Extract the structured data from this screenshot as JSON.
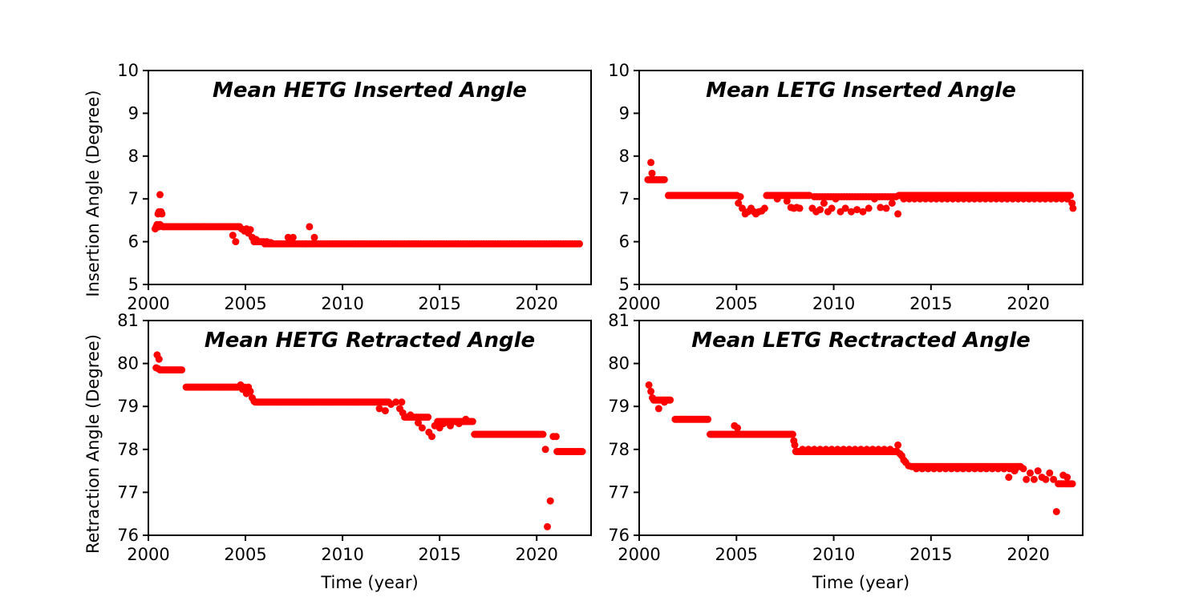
{
  "figure": {
    "background": "#ffffff",
    "marker_color": "#ff0000",
    "axis_color": "#000000"
  },
  "chart_data": [
    {
      "id": "hetg-inserted",
      "type": "scatter",
      "title": "Mean HETG Inserted Angle",
      "xlabel": "",
      "ylabel": "Insertion Angle (Degree)",
      "xlim": [
        2000,
        2022.8
      ],
      "ylim": [
        5,
        10
      ],
      "xticks": [
        2000,
        2005,
        2010,
        2015,
        2020
      ],
      "yticks": [
        5,
        6,
        7,
        8,
        9,
        10
      ],
      "grid": false,
      "runs": [
        [
          2000.8,
          2004.7,
          0.1,
          6.35
        ],
        [
          2005.45,
          2005.95,
          0.1,
          6.0
        ],
        [
          2006.0,
          2022.3,
          0.12,
          5.95
        ]
      ],
      "points": [
        [
          2000.35,
          6.3
        ],
        [
          2000.4,
          6.35
        ],
        [
          2000.45,
          6.4
        ],
        [
          2000.5,
          6.65
        ],
        [
          2000.55,
          6.7
        ],
        [
          2000.6,
          7.1
        ],
        [
          2000.65,
          6.7
        ],
        [
          2000.7,
          6.65
        ],
        [
          2000.55,
          6.35
        ],
        [
          2000.6,
          6.4
        ],
        [
          2000.75,
          6.35
        ],
        [
          2004.35,
          6.15
        ],
        [
          2004.5,
          6.0
        ],
        [
          2004.8,
          6.3
        ],
        [
          2004.95,
          6.25
        ],
        [
          2005.05,
          6.3
        ],
        [
          2005.15,
          6.2
        ],
        [
          2005.25,
          6.28
        ],
        [
          2005.35,
          6.1
        ],
        [
          2005.55,
          6.05
        ],
        [
          2006.1,
          6.0
        ],
        [
          2006.3,
          5.98
        ],
        [
          2007.2,
          6.1
        ],
        [
          2007.45,
          6.1
        ],
        [
          2008.3,
          6.35
        ],
        [
          2008.55,
          6.1
        ]
      ]
    },
    {
      "id": "letg-inserted",
      "type": "scatter",
      "title": "Mean LETG Inserted Angle",
      "xlabel": "",
      "ylabel": "",
      "xlim": [
        2000,
        2022.8
      ],
      "ylim": [
        5,
        10
      ],
      "xticks": [
        2000,
        2005,
        2010,
        2015,
        2020
      ],
      "yticks": [
        5,
        6,
        7,
        8,
        9,
        10
      ],
      "grid": false,
      "runs": [
        [
          2000.45,
          2001.35,
          0.07,
          7.45
        ],
        [
          2001.5,
          2005.05,
          0.08,
          7.08
        ],
        [
          2006.55,
          2008.75,
          0.1,
          7.08
        ],
        [
          2009.0,
          2013.2,
          0.14,
          7.05
        ],
        [
          2013.35,
          2022.2,
          0.07,
          7.08
        ],
        [
          2013.6,
          2022.0,
          0.28,
          7.0
        ]
      ],
      "points": [
        [
          2000.6,
          7.85
        ],
        [
          2000.66,
          7.6
        ],
        [
          2005.1,
          6.9
        ],
        [
          2005.2,
          7.05
        ],
        [
          2005.3,
          6.78
        ],
        [
          2005.45,
          6.65
        ],
        [
          2005.6,
          6.7
        ],
        [
          2005.75,
          6.78
        ],
        [
          2005.9,
          6.7
        ],
        [
          2006.0,
          6.65
        ],
        [
          2006.15,
          6.7
        ],
        [
          2006.3,
          6.72
        ],
        [
          2006.45,
          6.78
        ],
        [
          2007.1,
          7.0
        ],
        [
          2007.6,
          6.95
        ],
        [
          2007.8,
          6.8
        ],
        [
          2007.95,
          6.78
        ],
        [
          2008.1,
          6.8
        ],
        [
          2008.25,
          6.78
        ],
        [
          2008.9,
          6.78
        ],
        [
          2009.1,
          6.7
        ],
        [
          2009.3,
          6.75
        ],
        [
          2009.5,
          6.9
        ],
        [
          2009.7,
          6.7
        ],
        [
          2009.9,
          6.78
        ],
        [
          2010.1,
          7.0
        ],
        [
          2010.35,
          6.7
        ],
        [
          2010.6,
          6.78
        ],
        [
          2010.9,
          6.7
        ],
        [
          2011.2,
          6.75
        ],
        [
          2011.5,
          6.7
        ],
        [
          2011.8,
          6.78
        ],
        [
          2012.1,
          7.0
        ],
        [
          2012.4,
          6.8
        ],
        [
          2012.7,
          6.78
        ],
        [
          2013.0,
          6.9
        ],
        [
          2013.3,
          6.65
        ],
        [
          2022.25,
          6.9
        ],
        [
          2022.3,
          6.78
        ]
      ]
    },
    {
      "id": "hetg-retracted",
      "type": "scatter",
      "title": "Mean HETG Retracted Angle",
      "xlabel": "Time (year)",
      "ylabel": "Retraction Angle (Degree)",
      "xlim": [
        2000,
        2022.8
      ],
      "ylim": [
        76,
        81
      ],
      "xticks": [
        2000,
        2005,
        2010,
        2015,
        2020
      ],
      "yticks": [
        76,
        77,
        78,
        79,
        80,
        81
      ],
      "grid": false,
      "runs": [
        [
          2000.6,
          2001.75,
          0.08,
          79.85
        ],
        [
          2001.95,
          2004.65,
          0.08,
          79.45
        ],
        [
          2005.5,
          2012.4,
          0.08,
          79.1
        ],
        [
          2013.2,
          2014.4,
          0.12,
          78.75
        ],
        [
          2014.9,
          2016.7,
          0.09,
          78.65
        ],
        [
          2016.8,
          2020.35,
          0.08,
          78.35
        ],
        [
          2021.15,
          2022.35,
          0.08,
          77.95
        ]
      ],
      "points": [
        [
          2000.45,
          80.2
        ],
        [
          2000.55,
          80.1
        ],
        [
          2000.4,
          79.9
        ],
        [
          2000.5,
          79.88
        ],
        [
          2004.75,
          79.5
        ],
        [
          2004.85,
          79.4
        ],
        [
          2004.95,
          79.45
        ],
        [
          2005.05,
          79.3
        ],
        [
          2005.15,
          79.45
        ],
        [
          2005.25,
          79.35
        ],
        [
          2005.35,
          79.2
        ],
        [
          2005.45,
          79.12
        ],
        [
          2011.9,
          78.95
        ],
        [
          2012.2,
          78.9
        ],
        [
          2012.5,
          79.05
        ],
        [
          2012.75,
          79.1
        ],
        [
          2012.95,
          78.95
        ],
        [
          2013.05,
          79.1
        ],
        [
          2013.1,
          78.85
        ],
        [
          2013.5,
          78.8
        ],
        [
          2013.9,
          78.62
        ],
        [
          2014.1,
          78.5
        ],
        [
          2014.45,
          78.4
        ],
        [
          2014.6,
          78.3
        ],
        [
          2014.75,
          78.55
        ],
        [
          2015.0,
          78.5
        ],
        [
          2015.2,
          78.6
        ],
        [
          2015.55,
          78.55
        ],
        [
          2016.0,
          78.6
        ],
        [
          2016.35,
          78.7
        ],
        [
          2020.45,
          78.0
        ],
        [
          2020.55,
          76.2
        ],
        [
          2020.7,
          76.8
        ],
        [
          2020.85,
          78.3
        ],
        [
          2021.0,
          78.3
        ],
        [
          2021.05,
          77.95
        ]
      ]
    },
    {
      "id": "letg-retracted",
      "type": "scatter",
      "title": "Mean LETG Rectracted Angle",
      "xlabel": "Time (year)",
      "ylabel": "",
      "xlim": [
        2000,
        2022.8
      ],
      "ylim": [
        76,
        81
      ],
      "xticks": [
        2000,
        2005,
        2010,
        2015,
        2020
      ],
      "yticks": [
        76,
        77,
        78,
        79,
        80,
        81
      ],
      "grid": false,
      "runs": [
        [
          2000.75,
          2001.65,
          0.07,
          79.15
        ],
        [
          2001.85,
          2003.55,
          0.08,
          78.7
        ],
        [
          2003.65,
          2007.9,
          0.08,
          78.35
        ],
        [
          2008.05,
          2013.25,
          0.08,
          77.95
        ],
        [
          2008.4,
          2013.0,
          0.3,
          78.0
        ],
        [
          2014.0,
          2019.6,
          0.07,
          77.6
        ],
        [
          2014.25,
          2019.5,
          0.3,
          77.55
        ],
        [
          2021.55,
          2022.35,
          0.09,
          77.2
        ]
      ],
      "points": [
        [
          2000.5,
          79.5
        ],
        [
          2000.6,
          79.35
        ],
        [
          2000.68,
          79.2
        ],
        [
          2001.0,
          78.95
        ],
        [
          2001.3,
          79.1
        ],
        [
          2004.9,
          78.55
        ],
        [
          2005.05,
          78.5
        ],
        [
          2007.95,
          78.2
        ],
        [
          2008.0,
          78.1
        ],
        [
          2013.3,
          78.1
        ],
        [
          2013.4,
          77.9
        ],
        [
          2013.5,
          77.85
        ],
        [
          2013.6,
          77.75
        ],
        [
          2013.7,
          77.7
        ],
        [
          2013.85,
          77.62
        ],
        [
          2019.0,
          77.35
        ],
        [
          2019.3,
          77.5
        ],
        [
          2019.75,
          77.55
        ],
        [
          2019.9,
          77.3
        ],
        [
          2020.1,
          77.45
        ],
        [
          2020.3,
          77.3
        ],
        [
          2020.5,
          77.5
        ],
        [
          2020.7,
          77.35
        ],
        [
          2020.9,
          77.3
        ],
        [
          2021.1,
          77.45
        ],
        [
          2021.3,
          77.3
        ],
        [
          2021.45,
          76.55
        ],
        [
          2021.8,
          77.4
        ],
        [
          2022.0,
          77.35
        ]
      ]
    }
  ]
}
